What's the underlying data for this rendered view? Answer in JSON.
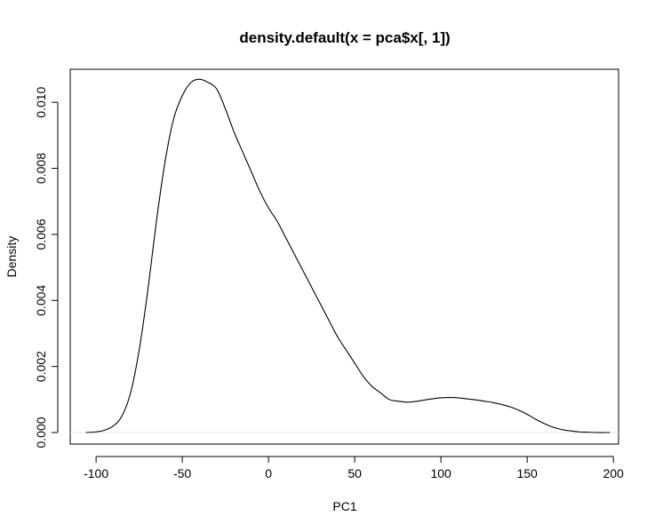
{
  "chart_data": {
    "type": "line",
    "title": "density.default(x = pca$x[, 1])",
    "xlabel": "PC1",
    "ylabel": "Density",
    "xlim": [
      -115,
      203
    ],
    "ylim": [
      -0.00035,
      0.011
    ],
    "x_ticks": [
      -100,
      -50,
      0,
      50,
      100,
      150,
      200
    ],
    "x_tick_labels": [
      "-100",
      "-50",
      "0",
      "50",
      "100",
      "150",
      "200"
    ],
    "y_ticks": [
      0,
      0.002,
      0.004,
      0.006,
      0.008,
      0.01
    ],
    "y_tick_labels": [
      "0.000",
      "0.002",
      "0.004",
      "0.006",
      "0.008",
      "0.010"
    ],
    "grid": false,
    "zero_line": true,
    "series": [
      {
        "x": [
          -106,
          -100,
          -95,
          -90,
          -85,
          -80,
          -75,
          -70,
          -65,
          -60,
          -55,
          -50,
          -45,
          -40,
          -35,
          -30,
          -25,
          -20,
          -15,
          -10,
          -5,
          0,
          5,
          10,
          15,
          20,
          25,
          30,
          35,
          40,
          45,
          50,
          55,
          60,
          65,
          70,
          75,
          80,
          85,
          90,
          95,
          100,
          105,
          110,
          115,
          120,
          125,
          130,
          135,
          140,
          145,
          150,
          155,
          160,
          165,
          170,
          175,
          180,
          185,
          190,
          198
        ],
        "y": [
          0.0,
          2e-05,
          7e-05,
          0.0002,
          0.0005,
          0.0012,
          0.0025,
          0.0043,
          0.0064,
          0.0082,
          0.0095,
          0.0102,
          0.0106,
          0.0107,
          0.0106,
          0.0104,
          0.0098,
          0.0091,
          0.0085,
          0.0079,
          0.0073,
          0.0068,
          0.0064,
          0.0059,
          0.0054,
          0.0049,
          0.0044,
          0.0039,
          0.0034,
          0.0029,
          0.0025,
          0.0021,
          0.0017,
          0.0014,
          0.0012,
          0.001,
          0.00095,
          0.00092,
          0.00094,
          0.00098,
          0.00102,
          0.00105,
          0.00106,
          0.00105,
          0.00102,
          0.00099,
          0.00095,
          0.00091,
          0.00085,
          0.00078,
          0.00068,
          0.00055,
          0.0004,
          0.00027,
          0.00016,
          9e-05,
          5e-05,
          2e-05,
          1e-05,
          0.0,
          0.0
        ]
      }
    ]
  }
}
